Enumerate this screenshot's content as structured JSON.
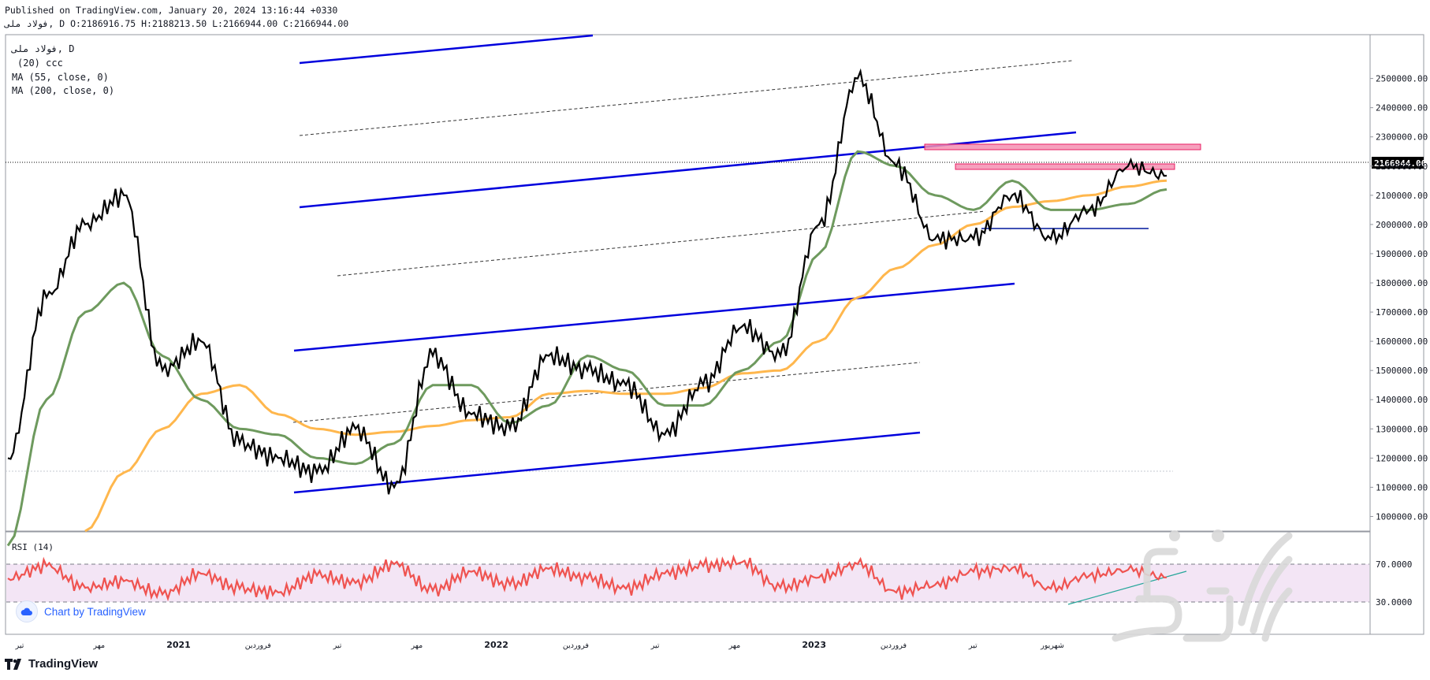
{
  "header": {
    "line1": "Published on TradingView.com, January 20, 2024 13:16:44 +0330",
    "line2": "فولاد ملی, D O:2186916.75 H:2188213.50 L:2166944.00 C:2166944.00"
  },
  "legend": {
    "symbol": "فولاد ملی, D",
    "indicator1": "(20) ccc",
    "indicator2": "MA (55, close, 0)",
    "indicator3": "MA (200, close, 0)"
  },
  "rsi_label": "RSI (14)",
  "badge_label": "Chart by TradingView",
  "footer_logo": "TradingView",
  "current_price_label": "2166944.00",
  "colors": {
    "price": "#000000",
    "ma55": "#6e9a5e",
    "ma200": "#ffb74d",
    "channel": "#0000dd",
    "rsi": "#ef5350",
    "rsi_band": "#f3e5f5",
    "zone": "#f48fb1",
    "support": "#3f51b5",
    "price_badge_bg": "#000000"
  },
  "chart_data": [
    {
      "type": "line",
      "title": "",
      "x": [
        "2020-01",
        "2020-03",
        "2020-05",
        "2020-07",
        "2020-09",
        "2020-11",
        "2021-01",
        "2021-03",
        "2021-05",
        "2021-07",
        "2021-09",
        "2021-11",
        "2022-01",
        "2022-03",
        "2022-05",
        "2022-07",
        "2022-09",
        "2022-11",
        "2023-01",
        "2023-02",
        "2023-03",
        "2023-04",
        "2023-05",
        "2023-06",
        "2023-07",
        "2023-08",
        "2023-09",
        "2023-10",
        "2023-11",
        "2023-12",
        "2024-01"
      ],
      "series": [
        {
          "name": "",
          "role": "price",
          "values": [
            1200000,
            1750000,
            2000000,
            2100000,
            1500000,
            1600000,
            1250000,
            1200000,
            1150000,
            1300000,
            1100000,
            1550000,
            1350000,
            1300000,
            1550000,
            1500000,
            1450000,
            1280000,
            1450000,
            1650000,
            1550000,
            2000000,
            2500000,
            2200000,
            1950000,
            1950000,
            2100000,
            1950000,
            2050000,
            2200000,
            2166944
          ]
        },
        {
          "name": "MA (55, close, 0)",
          "role": "ma55",
          "values": [
            900000,
            1400000,
            1700000,
            1800000,
            1550000,
            1400000,
            1300000,
            1280000,
            1200000,
            1180000,
            1250000,
            1450000,
            1450000,
            1320000,
            1380000,
            1550000,
            1500000,
            1380000,
            1380000,
            1500000,
            1600000,
            1900000,
            2250000,
            2200000,
            2100000,
            2050000,
            2150000,
            2050000,
            2050000,
            2070000,
            2120000
          ]
        },
        {
          "name": "MA (200, close, 0)",
          "role": "ma200",
          "values": [
            null,
            null,
            950000,
            1150000,
            1300000,
            1420000,
            1450000,
            1350000,
            1300000,
            1280000,
            1290000,
            1310000,
            1330000,
            1340000,
            1420000,
            1430000,
            1420000,
            1420000,
            1440000,
            1490000,
            1500000,
            1600000,
            1750000,
            1850000,
            1930000,
            2000000,
            2060000,
            2080000,
            2100000,
            2130000,
            2150000
          ]
        }
      ],
      "y_ticks": [
        "2500000.00",
        "2400000.00",
        "2300000.00",
        "2200000.00",
        "2100000.00",
        "2000000.00",
        "1900000.00",
        "1800000.00",
        "1700000.00",
        "1600000.00",
        "1500000.00",
        "1400000.00",
        "1300000.00",
        "1200000.00",
        "1100000.00",
        "1000000.00"
      ],
      "ylim": [
        950000,
        2650000
      ],
      "x_tick_labels": [
        "تیر",
        "مهر",
        "2021",
        "فروردین",
        "تیر",
        "مهر",
        "2022",
        "فروردین",
        "تیر",
        "مهر",
        "2023",
        "فروردین",
        "تیر",
        "شهریور"
      ],
      "annotations": {
        "resistance_zone_upper": [
          2195000,
          2215000
        ],
        "resistance_zone_lower": [
          2140000,
          2165000
        ],
        "support_line": 1950000,
        "current_price": 2166944
      },
      "grid": false
    },
    {
      "type": "line",
      "title": "RSI (14)",
      "series": [
        {
          "name": "RSI (14)",
          "role": "rsi",
          "values": [
            55,
            68,
            45,
            52,
            38,
            60,
            44,
            40,
            58,
            50,
            70,
            42,
            62,
            48,
            65,
            55,
            44,
            60,
            68,
            72,
            45,
            56,
            70,
            40,
            48,
            62,
            66,
            44,
            58,
            64,
            56
          ]
        }
      ],
      "levels": [
        70,
        30
      ],
      "y_ticks": [
        "70.0000",
        "30.0000"
      ],
      "ylim": [
        0,
        100
      ]
    }
  ]
}
